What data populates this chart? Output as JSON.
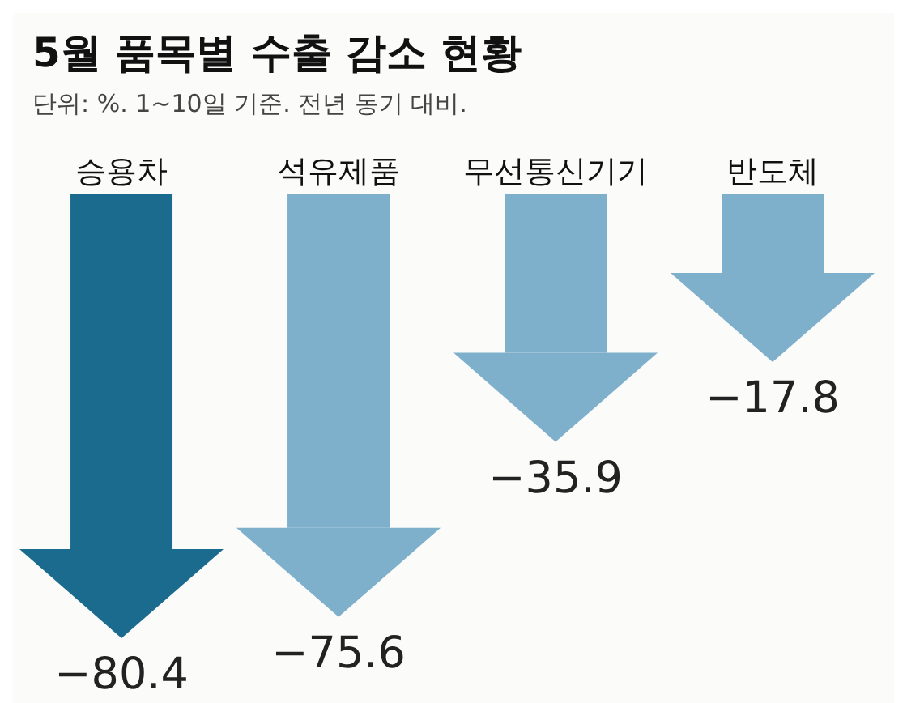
{
  "chart_data": {
    "type": "bar",
    "title": "5월 품목별 수출 감소 현황",
    "subtitle": "단위: %. 1~10일 기준. 전년 동기 대비.",
    "categories": [
      "승용차",
      "석유제품",
      "무선통신기기",
      "반도체"
    ],
    "values": [
      -80.4,
      -75.6,
      -35.9,
      -17.8
    ],
    "colors": [
      "#1b6b8f",
      "#7eb0cc",
      "#7eb0cc",
      "#7eb0cc"
    ],
    "value_labels": [
      "−80.4",
      "−75.6",
      "−35.9",
      "−17.8"
    ],
    "grid": false,
    "legend": false,
    "tick_labels": "x"
  }
}
